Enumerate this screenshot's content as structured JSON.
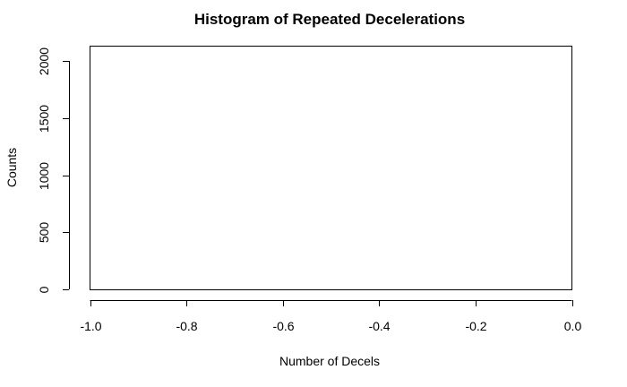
{
  "chart_data": {
    "type": "bar",
    "title": "Histogram of Repeated Decelerations",
    "xlabel": "Number of Decels",
    "ylabel": "Counts",
    "xlim": [
      -1.0,
      0.0
    ],
    "ylim": [
      0,
      2100
    ],
    "x_ticks": [
      -1.0,
      -0.8,
      -0.6,
      -0.4,
      -0.2,
      0.0
    ],
    "x_tick_labels": [
      "-1.0",
      "-0.8",
      "-0.6",
      "-0.4",
      "-0.2",
      "0.0"
    ],
    "y_ticks": [
      0,
      500,
      1000,
      1500,
      2000
    ],
    "y_tick_labels": [
      "0",
      "500",
      "1000",
      "1500",
      "2000"
    ],
    "bars": [],
    "grid": false,
    "legend": "none"
  }
}
